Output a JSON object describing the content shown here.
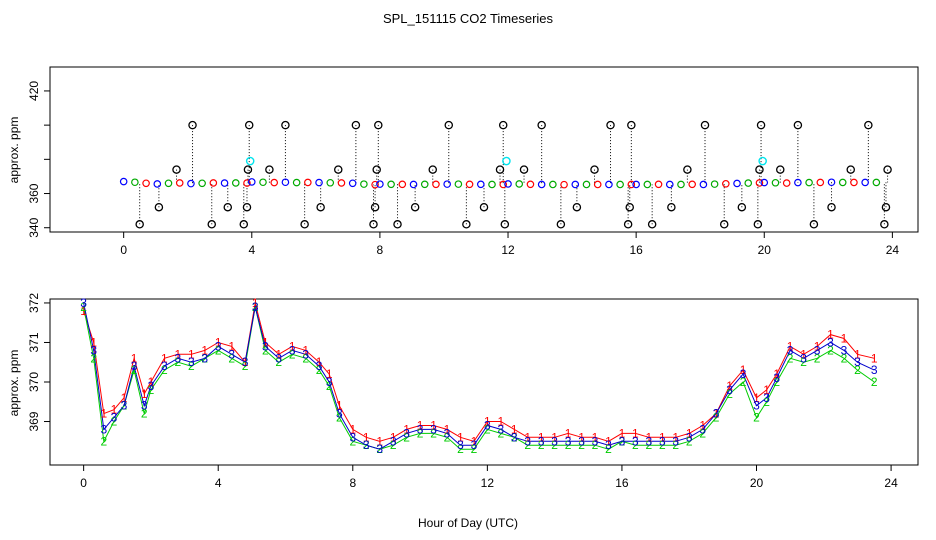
{
  "chart_data": [
    {
      "type": "scatter",
      "title": "SPL_151115  CO2 Timeseries",
      "xlabel": "",
      "ylabel": "approx. ppm",
      "xlim": [
        -2.3,
        24.8
      ],
      "ylim": [
        337.5,
        434
      ],
      "xticks": [
        0,
        4,
        8,
        12,
        16,
        20,
        24
      ],
      "xtick_labels": [
        "0",
        "4",
        "8",
        "12",
        "16",
        "20",
        "24"
      ],
      "yticks": [
        340,
        360,
        420
      ],
      "ytick_labels": [
        "340",
        "360",
        "420"
      ],
      "grid": false,
      "legend": "none",
      "series": [
        {
          "name": "measurements",
          "marker": "open-circle",
          "color": "#0000ff",
          "x": [
            0.0,
            0.35,
            0.7,
            1.05,
            1.4,
            1.75,
            2.1,
            2.45,
            2.8,
            3.15,
            3.5,
            3.85,
            4.0,
            4.35,
            4.7,
            5.05,
            5.4,
            5.75,
            6.1,
            6.45,
            6.8,
            7.15,
            7.5,
            7.85,
            8.0,
            8.35,
            8.7,
            9.05,
            9.4,
            9.75,
            10.1,
            10.45,
            10.8,
            11.15,
            11.5,
            11.85,
            12.0,
            12.35,
            12.7,
            13.05,
            13.4,
            13.75,
            14.1,
            14.45,
            14.8,
            15.15,
            15.5,
            15.85,
            16.0,
            16.35,
            16.7,
            17.05,
            17.4,
            17.75,
            18.1,
            18.45,
            18.8,
            19.15,
            19.5,
            19.85,
            20.0,
            20.35,
            20.7,
            21.05,
            21.4,
            21.75,
            22.1,
            22.45,
            22.8,
            23.15,
            23.5
          ],
          "y": [
            367,
            366.6,
            366,
            365.6,
            366,
            366.2,
            365.8,
            366,
            366.2,
            366.1,
            366.2,
            366.1,
            366.8,
            366.6,
            366.4,
            366.6,
            366.4,
            366.5,
            366.4,
            366.3,
            366.2,
            366,
            365.5,
            365.2,
            365.5,
            365.4,
            365.4,
            365.3,
            365.4,
            365.4,
            365.5,
            365.5,
            365.4,
            365.4,
            365.3,
            365.3,
            365.6,
            365.6,
            365.4,
            365.3,
            365.3,
            365.2,
            365.3,
            365.3,
            365.3,
            365.3,
            365.3,
            365.3,
            365.3,
            365.3,
            365.4,
            365.3,
            365.3,
            365.4,
            365.3,
            365.5,
            365.7,
            365.9,
            366.1,
            366.2,
            366.4,
            366.3,
            366.1,
            366.4,
            366.4,
            366.5,
            366.6,
            366.5,
            366.5,
            366.5,
            366.5
          ]
        },
        {
          "name": "spikes",
          "marker": "open-circle",
          "color": "#000000",
          "x": [
            0.5,
            1.1,
            1.65,
            2.15,
            2.75,
            3.25,
            3.75,
            3.85,
            3.88,
            3.92,
            4.55,
            5.05,
            5.65,
            6.15,
            6.7,
            7.25,
            7.8,
            7.85,
            7.9,
            7.95,
            8.55,
            9.1,
            9.65,
            10.15,
            10.7,
            11.25,
            11.75,
            11.85,
            11.9,
            12.5,
            13.05,
            13.65,
            14.15,
            14.7,
            15.2,
            15.75,
            15.8,
            15.85,
            16.5,
            17.1,
            17.6,
            18.15,
            18.75,
            19.3,
            19.8,
            19.85,
            19.9,
            20.5,
            21.05,
            21.55,
            22.1,
            22.7,
            23.25,
            23.75,
            23.8,
            23.85
          ],
          "y": [
            342,
            352,
            374,
            400,
            342,
            352,
            342,
            352,
            374,
            400,
            374,
            400,
            342,
            352,
            374,
            400,
            342,
            352,
            374,
            400,
            342,
            352,
            374,
            400,
            342,
            352,
            374,
            400,
            342,
            374,
            400,
            342,
            352,
            374,
            400,
            342,
            352,
            400,
            342,
            352,
            374,
            400,
            342,
            352,
            342,
            374,
            400,
            374,
            400,
            342,
            352,
            374,
            400,
            342,
            352,
            374
          ]
        },
        {
          "name": "flagged",
          "marker": "open-circle",
          "color": "#00e5ee",
          "x": [
            3.95,
            11.95,
            19.95
          ],
          "y": [
            379,
            379,
            379
          ]
        }
      ]
    },
    {
      "type": "line",
      "title": "",
      "xlabel": "Hour of Day (UTC)",
      "ylabel": "approx. ppm",
      "xlim": [
        -1,
        24.8
      ],
      "ylim": [
        367.9,
        372.1
      ],
      "xticks": [
        0,
        4,
        8,
        12,
        16,
        20,
        24
      ],
      "xtick_labels": [
        "0",
        "4",
        "8",
        "12",
        "16",
        "20",
        "24"
      ],
      "yticks": [
        369,
        370,
        371,
        372
      ],
      "ytick_labels": [
        "369",
        "370",
        "371",
        "372"
      ],
      "grid": false,
      "legend": "none",
      "x": [
        0.0,
        0.3,
        0.6,
        0.9,
        1.2,
        1.5,
        1.8,
        2.0,
        2.4,
        2.8,
        3.2,
        3.6,
        4.0,
        4.4,
        4.8,
        5.1,
        5.4,
        5.8,
        6.2,
        6.6,
        7.0,
        7.3,
        7.6,
        8.0,
        8.4,
        8.8,
        9.2,
        9.6,
        10.0,
        10.4,
        10.8,
        11.2,
        11.6,
        12.0,
        12.4,
        12.8,
        13.2,
        13.6,
        14.0,
        14.4,
        14.8,
        15.2,
        15.6,
        16.0,
        16.4,
        16.8,
        17.2,
        17.6,
        18.0,
        18.4,
        18.8,
        19.2,
        19.6,
        20.0,
        20.3,
        20.6,
        21.0,
        21.4,
        21.8,
        22.2,
        22.6,
        23.0,
        23.5
      ],
      "series": [
        {
          "name": "1",
          "color": "#ff0000",
          "values": [
            371.8,
            371,
            369.2,
            369.3,
            369.6,
            370.6,
            369.7,
            370,
            370.6,
            370.7,
            370.7,
            370.8,
            371,
            370.9,
            370.5,
            372,
            371,
            370.7,
            370.9,
            370.8,
            370.5,
            370.2,
            369.4,
            368.8,
            368.6,
            368.5,
            368.6,
            368.8,
            368.9,
            368.9,
            368.8,
            368.6,
            368.5,
            369,
            369,
            368.8,
            368.6,
            368.6,
            368.6,
            368.7,
            368.6,
            368.6,
            368.5,
            368.7,
            368.7,
            368.6,
            368.6,
            368.6,
            368.7,
            368.9,
            369.2,
            369.9,
            370.3,
            369.6,
            369.8,
            370.2,
            370.9,
            370.7,
            370.9,
            371.2,
            371.1,
            370.7,
            370.6
          ]
        },
        {
          "name": "2",
          "color": "#00cc00",
          "values": [
            371.9,
            370.6,
            368.5,
            369,
            369.4,
            370.3,
            369.2,
            369.8,
            370.3,
            370.5,
            370.4,
            370.6,
            370.8,
            370.6,
            370.4,
            371.9,
            370.8,
            370.5,
            370.7,
            370.6,
            370.3,
            369.9,
            369.1,
            368.5,
            368.4,
            368.3,
            368.4,
            368.6,
            368.7,
            368.7,
            368.6,
            368.3,
            368.3,
            368.8,
            368.7,
            368.6,
            368.4,
            368.4,
            368.4,
            368.4,
            368.4,
            368.4,
            368.3,
            368.5,
            368.4,
            368.4,
            368.4,
            368.4,
            368.5,
            368.7,
            369.1,
            369.7,
            370,
            369.1,
            369.5,
            370,
            370.6,
            370.5,
            370.6,
            370.8,
            370.6,
            370.3,
            370
          ]
        },
        {
          "name": "3",
          "color": "#0000cc",
          "values": [
            372,
            370.8,
            368.8,
            369.1,
            369.4,
            370.4,
            369.4,
            369.9,
            370.4,
            370.6,
            370.5,
            370.6,
            370.9,
            370.7,
            370.5,
            371.9,
            370.9,
            370.6,
            370.8,
            370.7,
            370.4,
            370,
            369.2,
            368.6,
            368.4,
            368.3,
            368.5,
            368.7,
            368.8,
            368.8,
            368.7,
            368.4,
            368.4,
            368.9,
            368.8,
            368.6,
            368.5,
            368.5,
            368.5,
            368.5,
            368.5,
            368.5,
            368.4,
            368.5,
            368.5,
            368.5,
            368.5,
            368.5,
            368.6,
            368.8,
            369.2,
            369.8,
            370.2,
            369.4,
            369.6,
            370.1,
            370.8,
            370.6,
            370.8,
            371,
            370.8,
            370.5,
            370.3
          ]
        }
      ]
    }
  ]
}
